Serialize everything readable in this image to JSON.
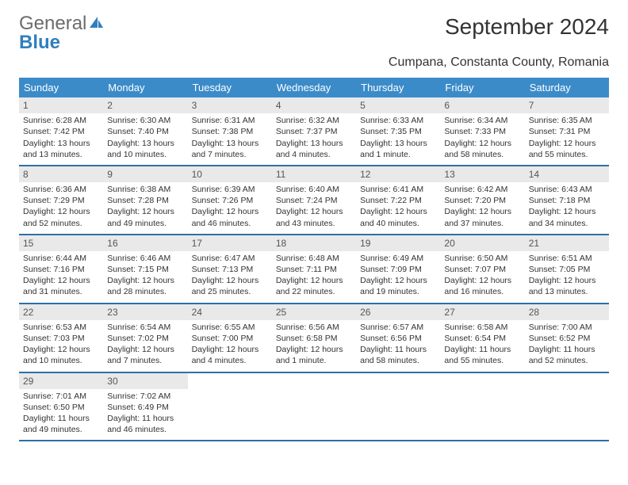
{
  "logo": {
    "text1": "General",
    "text2": "Blue"
  },
  "title": "September 2024",
  "subtitle": "Cumpana, Constanta County, Romania",
  "colors": {
    "header_bg": "#3b8bc9",
    "header_text": "#ffffff",
    "week_border": "#2f6fa8",
    "daynum_bg": "#e9e9e9",
    "logo_gray": "#6b6b6b",
    "logo_blue": "#2f7fbf"
  },
  "weekdays": [
    "Sunday",
    "Monday",
    "Tuesday",
    "Wednesday",
    "Thursday",
    "Friday",
    "Saturday"
  ],
  "weeks": [
    [
      {
        "n": "1",
        "sunrise": "Sunrise: 6:28 AM",
        "sunset": "Sunset: 7:42 PM",
        "daylight": "Daylight: 13 hours and 13 minutes."
      },
      {
        "n": "2",
        "sunrise": "Sunrise: 6:30 AM",
        "sunset": "Sunset: 7:40 PM",
        "daylight": "Daylight: 13 hours and 10 minutes."
      },
      {
        "n": "3",
        "sunrise": "Sunrise: 6:31 AM",
        "sunset": "Sunset: 7:38 PM",
        "daylight": "Daylight: 13 hours and 7 minutes."
      },
      {
        "n": "4",
        "sunrise": "Sunrise: 6:32 AM",
        "sunset": "Sunset: 7:37 PM",
        "daylight": "Daylight: 13 hours and 4 minutes."
      },
      {
        "n": "5",
        "sunrise": "Sunrise: 6:33 AM",
        "sunset": "Sunset: 7:35 PM",
        "daylight": "Daylight: 13 hours and 1 minute."
      },
      {
        "n": "6",
        "sunrise": "Sunrise: 6:34 AM",
        "sunset": "Sunset: 7:33 PM",
        "daylight": "Daylight: 12 hours and 58 minutes."
      },
      {
        "n": "7",
        "sunrise": "Sunrise: 6:35 AM",
        "sunset": "Sunset: 7:31 PM",
        "daylight": "Daylight: 12 hours and 55 minutes."
      }
    ],
    [
      {
        "n": "8",
        "sunrise": "Sunrise: 6:36 AM",
        "sunset": "Sunset: 7:29 PM",
        "daylight": "Daylight: 12 hours and 52 minutes."
      },
      {
        "n": "9",
        "sunrise": "Sunrise: 6:38 AM",
        "sunset": "Sunset: 7:28 PM",
        "daylight": "Daylight: 12 hours and 49 minutes."
      },
      {
        "n": "10",
        "sunrise": "Sunrise: 6:39 AM",
        "sunset": "Sunset: 7:26 PM",
        "daylight": "Daylight: 12 hours and 46 minutes."
      },
      {
        "n": "11",
        "sunrise": "Sunrise: 6:40 AM",
        "sunset": "Sunset: 7:24 PM",
        "daylight": "Daylight: 12 hours and 43 minutes."
      },
      {
        "n": "12",
        "sunrise": "Sunrise: 6:41 AM",
        "sunset": "Sunset: 7:22 PM",
        "daylight": "Daylight: 12 hours and 40 minutes."
      },
      {
        "n": "13",
        "sunrise": "Sunrise: 6:42 AM",
        "sunset": "Sunset: 7:20 PM",
        "daylight": "Daylight: 12 hours and 37 minutes."
      },
      {
        "n": "14",
        "sunrise": "Sunrise: 6:43 AM",
        "sunset": "Sunset: 7:18 PM",
        "daylight": "Daylight: 12 hours and 34 minutes."
      }
    ],
    [
      {
        "n": "15",
        "sunrise": "Sunrise: 6:44 AM",
        "sunset": "Sunset: 7:16 PM",
        "daylight": "Daylight: 12 hours and 31 minutes."
      },
      {
        "n": "16",
        "sunrise": "Sunrise: 6:46 AM",
        "sunset": "Sunset: 7:15 PM",
        "daylight": "Daylight: 12 hours and 28 minutes."
      },
      {
        "n": "17",
        "sunrise": "Sunrise: 6:47 AM",
        "sunset": "Sunset: 7:13 PM",
        "daylight": "Daylight: 12 hours and 25 minutes."
      },
      {
        "n": "18",
        "sunrise": "Sunrise: 6:48 AM",
        "sunset": "Sunset: 7:11 PM",
        "daylight": "Daylight: 12 hours and 22 minutes."
      },
      {
        "n": "19",
        "sunrise": "Sunrise: 6:49 AM",
        "sunset": "Sunset: 7:09 PM",
        "daylight": "Daylight: 12 hours and 19 minutes."
      },
      {
        "n": "20",
        "sunrise": "Sunrise: 6:50 AM",
        "sunset": "Sunset: 7:07 PM",
        "daylight": "Daylight: 12 hours and 16 minutes."
      },
      {
        "n": "21",
        "sunrise": "Sunrise: 6:51 AM",
        "sunset": "Sunset: 7:05 PM",
        "daylight": "Daylight: 12 hours and 13 minutes."
      }
    ],
    [
      {
        "n": "22",
        "sunrise": "Sunrise: 6:53 AM",
        "sunset": "Sunset: 7:03 PM",
        "daylight": "Daylight: 12 hours and 10 minutes."
      },
      {
        "n": "23",
        "sunrise": "Sunrise: 6:54 AM",
        "sunset": "Sunset: 7:02 PM",
        "daylight": "Daylight: 12 hours and 7 minutes."
      },
      {
        "n": "24",
        "sunrise": "Sunrise: 6:55 AM",
        "sunset": "Sunset: 7:00 PM",
        "daylight": "Daylight: 12 hours and 4 minutes."
      },
      {
        "n": "25",
        "sunrise": "Sunrise: 6:56 AM",
        "sunset": "Sunset: 6:58 PM",
        "daylight": "Daylight: 12 hours and 1 minute."
      },
      {
        "n": "26",
        "sunrise": "Sunrise: 6:57 AM",
        "sunset": "Sunset: 6:56 PM",
        "daylight": "Daylight: 11 hours and 58 minutes."
      },
      {
        "n": "27",
        "sunrise": "Sunrise: 6:58 AM",
        "sunset": "Sunset: 6:54 PM",
        "daylight": "Daylight: 11 hours and 55 minutes."
      },
      {
        "n": "28",
        "sunrise": "Sunrise: 7:00 AM",
        "sunset": "Sunset: 6:52 PM",
        "daylight": "Daylight: 11 hours and 52 minutes."
      }
    ],
    [
      {
        "n": "29",
        "sunrise": "Sunrise: 7:01 AM",
        "sunset": "Sunset: 6:50 PM",
        "daylight": "Daylight: 11 hours and 49 minutes."
      },
      {
        "n": "30",
        "sunrise": "Sunrise: 7:02 AM",
        "sunset": "Sunset: 6:49 PM",
        "daylight": "Daylight: 11 hours and 46 minutes."
      },
      {
        "n": "",
        "sunrise": "",
        "sunset": "",
        "daylight": ""
      },
      {
        "n": "",
        "sunrise": "",
        "sunset": "",
        "daylight": ""
      },
      {
        "n": "",
        "sunrise": "",
        "sunset": "",
        "daylight": ""
      },
      {
        "n": "",
        "sunrise": "",
        "sunset": "",
        "daylight": ""
      },
      {
        "n": "",
        "sunrise": "",
        "sunset": "",
        "daylight": ""
      }
    ]
  ]
}
